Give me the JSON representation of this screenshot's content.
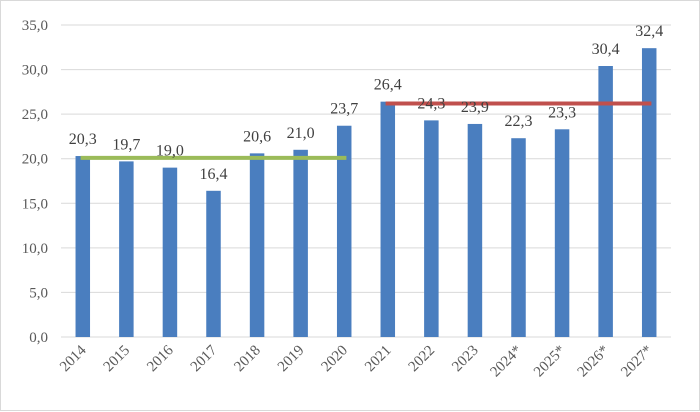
{
  "chart_data": {
    "type": "bar",
    "categories": [
      "2014",
      "2015",
      "2016",
      "2017",
      "2018",
      "2019",
      "2020",
      "2021",
      "2022",
      "2023",
      "2024*",
      "2025*",
      "2026*",
      "2027*"
    ],
    "values": [
      20.3,
      19.7,
      19.0,
      16.4,
      20.6,
      21.0,
      23.7,
      26.4,
      24.3,
      23.9,
      22.3,
      23.3,
      30.4,
      32.4
    ],
    "data_labels": [
      "20,3",
      "19,7",
      "19,0",
      "16,4",
      "20,6",
      "21,0",
      "23,7",
      "26,4",
      "24,3",
      "23,9",
      "22,3",
      "23,3",
      "30,4",
      "32,4"
    ],
    "y_ticks": [
      0,
      5,
      10,
      15,
      20,
      25,
      30,
      35
    ],
    "y_tick_labels": [
      "0,0",
      "5,0",
      "10,0",
      "15,0",
      "20,0",
      "25,0",
      "30,0",
      "35,0"
    ],
    "ylim": [
      0,
      35
    ],
    "title": "",
    "xlabel": "",
    "ylabel": "",
    "grid": "horizontal",
    "bar_color": "#4a7ebf",
    "reference_lines": [
      {
        "from": "2014",
        "to": "2020",
        "value": 20.1,
        "color": "#9bbb59"
      },
      {
        "from": "2021",
        "to": "2027*",
        "value": 26.2,
        "color": "#c0504d"
      }
    ]
  }
}
